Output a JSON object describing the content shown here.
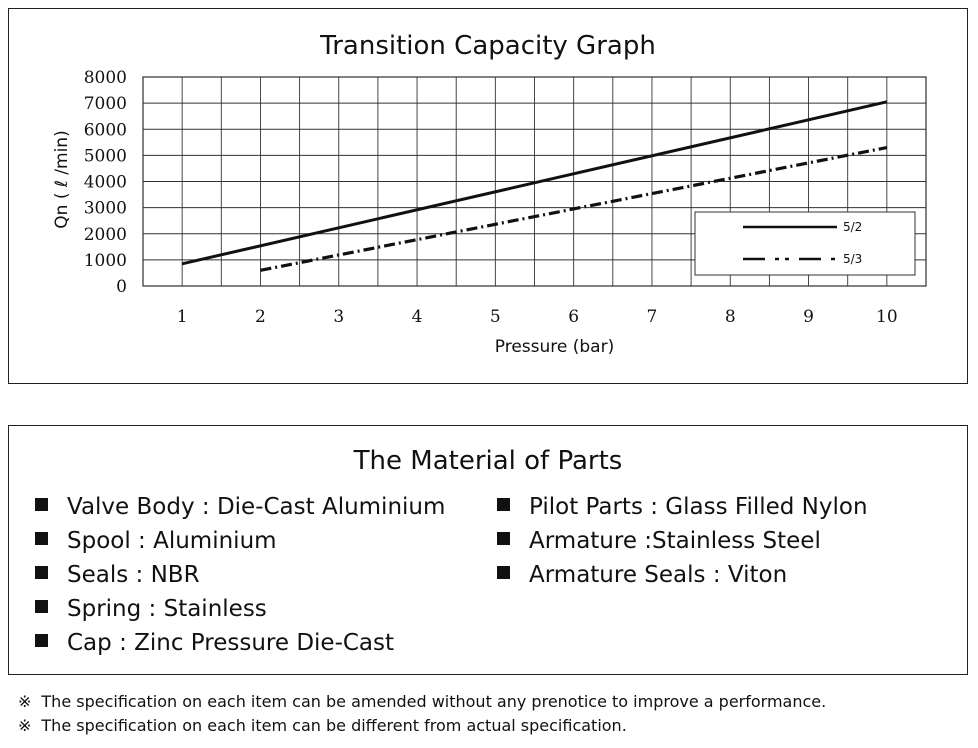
{
  "chart_data": {
    "type": "line",
    "title": "Transition Capacity Graph",
    "xlabel": "Pressure (bar)",
    "ylabel": "Qn ( ℓ /min)",
    "xlim": [
      0.5,
      10.5
    ],
    "ylim": [
      0,
      8000
    ],
    "x_ticks": [
      1,
      2,
      3,
      4,
      5,
      6,
      7,
      8,
      9,
      10
    ],
    "y_ticks": [
      0,
      1000,
      2000,
      3000,
      4000,
      5000,
      6000,
      7000,
      8000
    ],
    "grid": true,
    "legend_position": "bottom-right",
    "series": [
      {
        "name": "5/2",
        "style": "solid",
        "x": [
          1,
          10
        ],
        "y": [
          850,
          7050
        ]
      },
      {
        "name": "5/3",
        "style": "dash-dot",
        "x": [
          2,
          10
        ],
        "y": [
          600,
          5300
        ]
      }
    ]
  },
  "parts": {
    "title": "The Material of Parts",
    "left": [
      "Valve Body : Die-Cast Aluminium",
      "Spool : Aluminium",
      "Seals : NBR",
      "Spring : Stainless",
      "Cap : Zinc Pressure Die-Cast"
    ],
    "right": [
      "Pilot Parts : Glass Filled Nylon",
      "Armature :Stainless Steel",
      "Armature Seals : Viton"
    ]
  },
  "notes": {
    "mark": "※",
    "items": [
      "The specification on each item can be amended without any prenotice to improve a performance.",
      "The specification on each item can be different from actual specification."
    ]
  }
}
